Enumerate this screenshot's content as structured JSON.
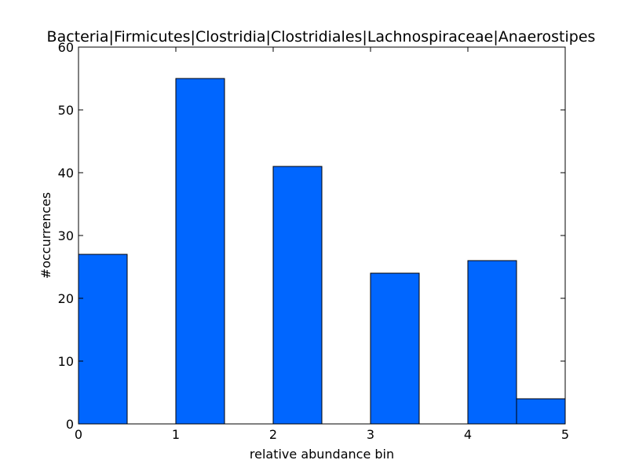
{
  "chart_data": {
    "type": "bar",
    "title": "Bacteria|Firmicutes|Clostridia|Clostridiales|Lachnospiraceae|Anaerostipes",
    "xlabel": "relative abundance bin",
    "ylabel": "#occurrences",
    "xlim": [
      0,
      5
    ],
    "ylim": [
      0,
      60
    ],
    "xticks": [
      "0",
      "1",
      "2",
      "3",
      "4",
      "5"
    ],
    "yticks": [
      "0",
      "10",
      "20",
      "30",
      "40",
      "50",
      "60"
    ],
    "bars": [
      {
        "x0": 0.0,
        "x1": 0.5,
        "value": 27
      },
      {
        "x0": 1.0,
        "x1": 1.5,
        "value": 55
      },
      {
        "x0": 2.0,
        "x1": 2.5,
        "value": 41
      },
      {
        "x0": 3.0,
        "x1": 3.5,
        "value": 24
      },
      {
        "x0": 4.0,
        "x1": 4.5,
        "value": 26
      },
      {
        "x0": 4.5,
        "x1": 5.0,
        "value": 4
      }
    ],
    "bar_color": "#0066ff",
    "edge_color": "#000000",
    "grid": false
  }
}
